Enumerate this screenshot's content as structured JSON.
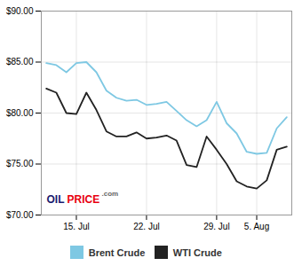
{
  "chart_data": {
    "type": "line",
    "x": [
      0,
      1,
      2,
      3,
      4,
      5,
      6,
      7,
      8,
      9,
      10,
      11,
      12,
      13,
      14,
      15,
      16,
      17,
      18,
      19,
      20,
      21,
      22,
      23,
      24
    ],
    "series": [
      {
        "name": "Brent Crude",
        "color": "#7ec8e3",
        "values": [
          84.9,
          84.7,
          84.0,
          84.9,
          85.0,
          84.0,
          82.2,
          81.5,
          81.2,
          81.3,
          80.8,
          80.9,
          81.1,
          80.2,
          79.3,
          78.7,
          79.3,
          81.1,
          79.0,
          78.0,
          76.2,
          76.0,
          76.1,
          78.5,
          79.6
        ]
      },
      {
        "name": "WTI Crude",
        "color": "#222222",
        "values": [
          82.4,
          82.0,
          80.0,
          79.9,
          82.0,
          80.3,
          78.2,
          77.7,
          77.7,
          78.1,
          77.5,
          77.6,
          77.8,
          77.3,
          74.9,
          74.7,
          77.7,
          76.4,
          75.0,
          73.3,
          72.8,
          72.6,
          73.4,
          76.4,
          76.7
        ]
      }
    ],
    "xlim": [
      -0.5,
      24.5
    ],
    "xticks": [
      {
        "value": 3,
        "label": "15. Jul"
      },
      {
        "value": 10,
        "label": "22. Jul"
      },
      {
        "value": 17,
        "label": "29. Jul"
      },
      {
        "value": 21,
        "label": "5. Aug"
      }
    ],
    "ylim": [
      70.0,
      90.0
    ],
    "yticks": [
      {
        "value": 70.0,
        "label": "$70.00"
      },
      {
        "value": 75.0,
        "label": "$75.00"
      },
      {
        "value": 80.0,
        "label": "$80.00"
      },
      {
        "value": 85.0,
        "label": "$85.00"
      },
      {
        "value": 90.0,
        "label": "$90.00"
      }
    ],
    "grid": true,
    "legend": "bottom",
    "annotations": [
      {
        "text": "OIL",
        "color": "#1a1a6e"
      },
      {
        "text": "PRICE",
        "color": "#e8000d"
      },
      {
        "text": ".com",
        "color": "#666666"
      }
    ]
  }
}
